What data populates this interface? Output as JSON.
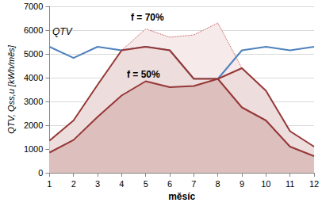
{
  "chart_data": {
    "type": "line",
    "x_label": "měsíc",
    "y_label": "QTV, Qss,u [kWh/měs]",
    "categories": [
      1,
      2,
      3,
      4,
      5,
      6,
      7,
      8,
      9,
      10,
      11,
      12
    ],
    "ylim": [
      0,
      7000
    ],
    "yticks": [
      0,
      1000,
      2000,
      3000,
      4000,
      5000,
      6000,
      7000
    ],
    "grid": true,
    "series": [
      {
        "name": "QTV",
        "type": "line",
        "color": "#4f81bd",
        "values": [
          5300,
          4830,
          5300,
          5150,
          5300,
          5150,
          3950,
          3950,
          5150,
          5300,
          5150,
          5300
        ]
      },
      {
        "name": "f = 70%",
        "type": "area",
        "color": "#953735",
        "values": [
          1350,
          2200,
          3700,
          5150,
          5300,
          5150,
          3950,
          3950,
          4400,
          3450,
          1750,
          1100
        ]
      },
      {
        "type": "area",
        "color": "#c0504d",
        "line_style": "dotted",
        "values": [
          null,
          null,
          null,
          5150,
          6050,
          5700,
          5800,
          6300,
          4400,
          null,
          null,
          null
        ]
      },
      {
        "name": "f = 50%",
        "type": "area",
        "color": "#953735",
        "values": [
          850,
          1380,
          2350,
          3250,
          3850,
          3600,
          3650,
          3950,
          2750,
          2200,
          1100,
          700
        ]
      }
    ]
  }
}
